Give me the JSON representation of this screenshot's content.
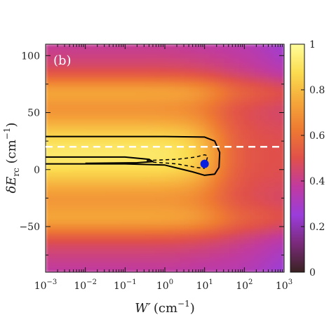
{
  "chart_data": {
    "type": "heatmap",
    "panel_label": "(b)",
    "x_axis": {
      "label_main": "W′",
      "label_unit": "(cm",
      "label_exp": "−1",
      "label_close": ")",
      "scale": "log",
      "range": [
        0.001,
        1000
      ],
      "tick_values": [
        0.001,
        0.01,
        0.1,
        1,
        10,
        100,
        1000
      ],
      "tick_labels": [
        {
          "base": "10",
          "exp": "−3"
        },
        {
          "base": "10",
          "exp": "−2"
        },
        {
          "base": "10",
          "exp": "−1"
        },
        {
          "base": "10",
          "exp": "0"
        },
        {
          "base": "10",
          "exp": "1"
        },
        {
          "base": "10",
          "exp": "2"
        },
        {
          "base": "10",
          "exp": "3"
        }
      ]
    },
    "y_axis": {
      "label_main": "δE",
      "label_sub": "rc",
      "label_unit": " (cm",
      "label_exp": "−1",
      "label_close": ")",
      "scale": "linear",
      "range": [
        -90,
        110
      ],
      "tick_values": [
        -50,
        0,
        50,
        100
      ],
      "tick_labels": [
        "−50",
        "0",
        "50",
        "100"
      ]
    },
    "colorbar": {
      "range": [
        0,
        1
      ],
      "tick_values": [
        0,
        0.2,
        0.4,
        0.6,
        0.8,
        1
      ],
      "tick_labels": [
        "0",
        "0.2",
        "0.4",
        "0.6",
        "0.8",
        "1"
      ],
      "colormap": [
        "#3a2222",
        "#7a2a7a",
        "#9a3ddb",
        "#c03aa0",
        "#e0504a",
        "#ee7a32",
        "#f5a83a",
        "#fbdc50",
        "#fffd9a"
      ]
    },
    "dashed_line": {
      "y": 20,
      "color": "#ffffff"
    },
    "contour_outer": [
      [
        0.001,
        29
      ],
      [
        1,
        29
      ],
      [
        10,
        28.5
      ],
      [
        18,
        25
      ],
      [
        24,
        15
      ],
      [
        23,
        2
      ],
      [
        18,
        -4
      ],
      [
        10,
        -5
      ],
      [
        5,
        -2
      ],
      [
        1,
        4
      ],
      [
        0.1,
        5
      ],
      [
        0.001,
        5
      ]
    ],
    "contour_inner": [
      [
        0.001,
        11
      ],
      [
        0.1,
        11
      ],
      [
        0.4,
        9
      ],
      [
        0.5,
        7
      ],
      [
        0.2,
        6
      ],
      [
        0.01,
        5.5
      ]
    ],
    "dashed_curves": [
      [
        [
          0.35,
          8
        ],
        [
          2,
          9
        ],
        [
          6,
          11
        ],
        [
          10,
          13
        ],
        [
          12,
          12
        ],
        [
          11,
          7
        ],
        [
          9,
          5
        ]
      ],
      [
        [
          0.35,
          7
        ],
        [
          2,
          5
        ],
        [
          6,
          2
        ],
        [
          10,
          1
        ]
      ]
    ],
    "marker": {
      "x": 10,
      "y": 5,
      "color": "#0b1fe0"
    }
  }
}
